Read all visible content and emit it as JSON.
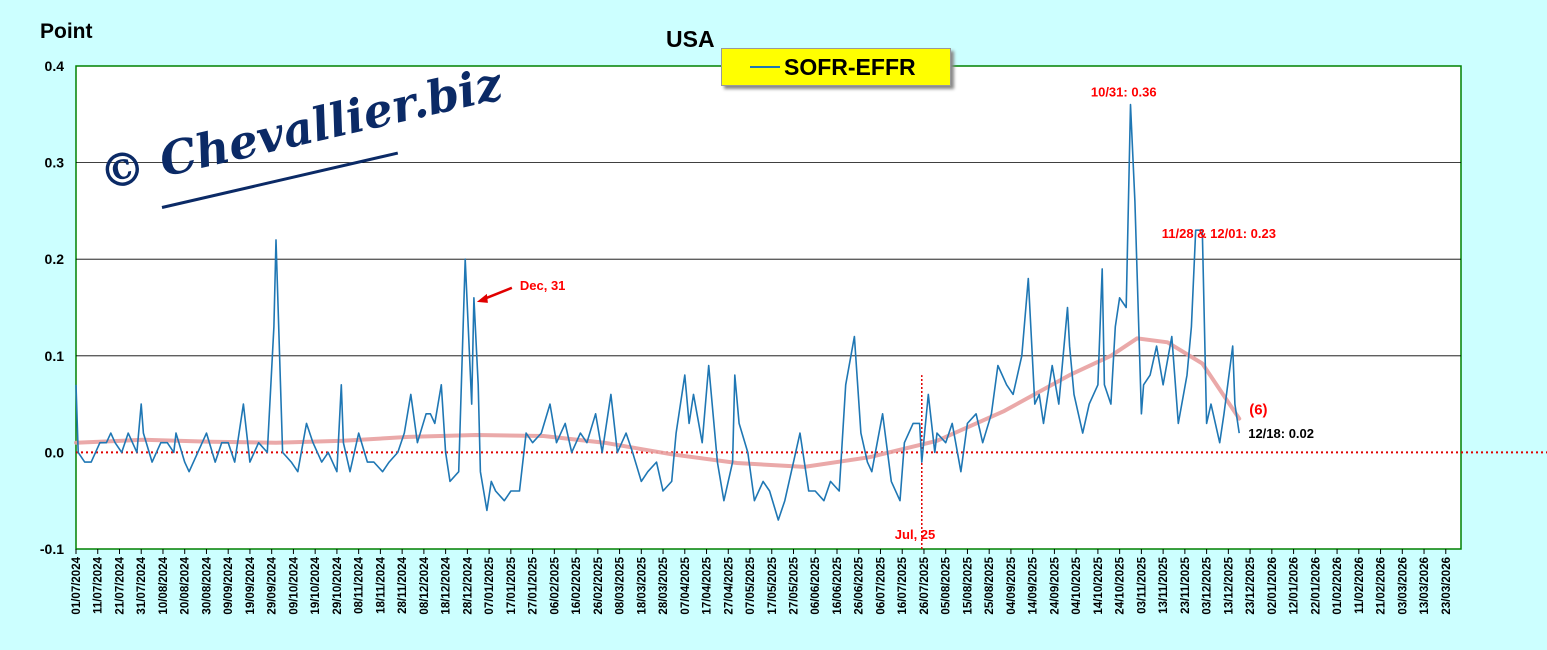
{
  "chart_data": {
    "type": "line",
    "title": "USA",
    "ylabel": "Point",
    "ylim": [
      -0.1,
      0.4
    ],
    "yticks": [
      "0.4",
      "0.3",
      "0.2",
      "0.1",
      "0.0",
      "-0.1"
    ],
    "xlim": [
      "2024-07-01",
      "2026-03-30"
    ],
    "xticks": [
      "01/07/2024",
      "11/07/2024",
      "21/07/2024",
      "31/07/2024",
      "10/08/2024",
      "20/08/2024",
      "30/08/2024",
      "09/09/2024",
      "19/09/2024",
      "29/09/2024",
      "09/10/2024",
      "19/10/2024",
      "29/10/2024",
      "08/11/2024",
      "18/11/2024",
      "28/11/2024",
      "08/12/2024",
      "18/12/2024",
      "28/12/2024",
      "07/01/2025",
      "17/01/2025",
      "27/01/2025",
      "06/02/2025",
      "16/02/2025",
      "26/02/2025",
      "08/03/2025",
      "18/03/2025",
      "28/03/2025",
      "07/04/2025",
      "17/04/2025",
      "27/04/2025",
      "07/05/2025",
      "17/05/2025",
      "27/05/2025",
      "06/06/2025",
      "16/06/2025",
      "26/06/2025",
      "06/07/2025",
      "16/07/2025",
      "26/07/2025",
      "05/08/2025",
      "15/08/2025",
      "25/08/2025",
      "04/09/2025",
      "14/09/2025",
      "24/09/2025",
      "04/10/2025",
      "14/10/2025",
      "24/10/2025",
      "03/11/2025",
      "13/11/2025",
      "23/11/2025",
      "03/12/2025",
      "13/12/2025",
      "23/12/2025",
      "02/01/2026",
      "12/01/2026",
      "22/01/2026",
      "01/02/2026",
      "11/02/2026",
      "21/02/2026",
      "03/03/2026",
      "13/03/2026",
      "23/03/2026"
    ],
    "grid": "horizontal",
    "legend": "top-center",
    "series": [
      {
        "name": "SOFR-EFFR",
        "color": "#1f77b4",
        "x": [
          "2024-07-01",
          "2024-07-02",
          "2024-07-05",
          "2024-07-08",
          "2024-07-12",
          "2024-07-15",
          "2024-07-17",
          "2024-07-19",
          "2024-07-22",
          "2024-07-25",
          "2024-07-29",
          "2024-07-31",
          "2024-08-01",
          "2024-08-05",
          "2024-08-09",
          "2024-08-12",
          "2024-08-15",
          "2024-08-16",
          "2024-08-20",
          "2024-08-22",
          "2024-08-26",
          "2024-08-30",
          "2024-09-03",
          "2024-09-06",
          "2024-09-09",
          "2024-09-12",
          "2024-09-16",
          "2024-09-19",
          "2024-09-23",
          "2024-09-27",
          "2024-09-30",
          "2024-10-01",
          "2024-10-04",
          "2024-10-08",
          "2024-10-11",
          "2024-10-15",
          "2024-10-18",
          "2024-10-22",
          "2024-10-25",
          "2024-10-29",
          "2024-10-31",
          "2024-11-01",
          "2024-11-04",
          "2024-11-08",
          "2024-11-12",
          "2024-11-15",
          "2024-11-19",
          "2024-11-22",
          "2024-11-26",
          "2024-11-29",
          "2024-12-02",
          "2024-12-05",
          "2024-12-09",
          "2024-12-11",
          "2024-12-13",
          "2024-12-16",
          "2024-12-18",
          "2024-12-20",
          "2024-12-24",
          "2024-12-27",
          "2024-12-30",
          "2024-12-31",
          "2025-01-02",
          "2025-01-03",
          "2025-01-06",
          "2025-01-08",
          "2025-01-10",
          "2025-01-14",
          "2025-01-17",
          "2025-01-21",
          "2025-01-24",
          "2025-01-27",
          "2025-01-31",
          "2025-02-04",
          "2025-02-07",
          "2025-02-11",
          "2025-02-14",
          "2025-02-18",
          "2025-02-21",
          "2025-02-25",
          "2025-02-28",
          "2025-03-04",
          "2025-03-07",
          "2025-03-11",
          "2025-03-14",
          "2025-03-18",
          "2025-03-21",
          "2025-03-25",
          "2025-03-28",
          "2025-04-01",
          "2025-04-03",
          "2025-04-07",
          "2025-04-09",
          "2025-04-11",
          "2025-04-15",
          "2025-04-18",
          "2025-04-22",
          "2025-04-25",
          "2025-04-29",
          "2025-04-30",
          "2025-05-02",
          "2025-05-06",
          "2025-05-09",
          "2025-05-13",
          "2025-05-16",
          "2025-05-20",
          "2025-05-23",
          "2025-05-27",
          "2025-05-30",
          "2025-06-03",
          "2025-06-06",
          "2025-06-10",
          "2025-06-13",
          "2025-06-17",
          "2025-06-20",
          "2025-06-24",
          "2025-06-27",
          "2025-06-30",
          "2025-07-02",
          "2025-07-07",
          "2025-07-11",
          "2025-07-15",
          "2025-07-17",
          "2025-07-21",
          "2025-07-24",
          "2025-07-25",
          "2025-07-28",
          "2025-07-31",
          "2025-08-01",
          "2025-08-05",
          "2025-08-08",
          "2025-08-12",
          "2025-08-15",
          "2025-08-19",
          "2025-08-22",
          "2025-08-26",
          "2025-08-29",
          "2025-09-02",
          "2025-09-05",
          "2025-09-09",
          "2025-09-12",
          "2025-09-15",
          "2025-09-17",
          "2025-09-19",
          "2025-09-23",
          "2025-09-26",
          "2025-09-30",
          "2025-10-01",
          "2025-10-03",
          "2025-10-07",
          "2025-10-10",
          "2025-10-14",
          "2025-10-16",
          "2025-10-17",
          "2025-10-20",
          "2025-10-22",
          "2025-10-24",
          "2025-10-27",
          "2025-10-29",
          "2025-10-31",
          "2025-11-03",
          "2025-11-04",
          "2025-11-07",
          "2025-11-10",
          "2025-11-13",
          "2025-11-17",
          "2025-11-20",
          "2025-11-24",
          "2025-11-26",
          "2025-11-28",
          "2025-12-01",
          "2025-12-03",
          "2025-12-05",
          "2025-12-09",
          "2025-12-11",
          "2025-12-15",
          "2025-12-16",
          "2025-12-18"
        ],
        "values": [
          0.07,
          0.0,
          -0.01,
          -0.01,
          0.01,
          0.01,
          0.02,
          0.01,
          0.0,
          0.02,
          0.0,
          0.05,
          0.02,
          -0.01,
          0.01,
          0.01,
          0.0,
          0.02,
          -0.01,
          -0.02,
          0.0,
          0.02,
          -0.01,
          0.01,
          0.01,
          -0.01,
          0.05,
          -0.01,
          0.01,
          0.0,
          0.13,
          0.22,
          0.0,
          -0.01,
          -0.02,
          0.03,
          0.01,
          -0.01,
          0.0,
          -0.02,
          0.07,
          0.01,
          -0.02,
          0.02,
          -0.01,
          -0.01,
          -0.02,
          -0.01,
          0.0,
          0.02,
          0.06,
          0.01,
          0.04,
          0.04,
          0.03,
          0.07,
          0.0,
          -0.03,
          -0.02,
          0.2,
          0.05,
          0.16,
          0.07,
          -0.02,
          -0.06,
          -0.03,
          -0.04,
          -0.05,
          -0.04,
          -0.04,
          0.02,
          0.01,
          0.02,
          0.05,
          0.01,
          0.03,
          0.0,
          0.02,
          0.01,
          0.04,
          0.0,
          0.06,
          0.0,
          0.02,
          0.0,
          -0.03,
          -0.02,
          -0.01,
          -0.04,
          -0.03,
          0.02,
          0.08,
          0.03,
          0.06,
          0.01,
          0.09,
          -0.01,
          -0.05,
          -0.01,
          0.08,
          0.03,
          0.0,
          -0.05,
          -0.03,
          -0.04,
          -0.07,
          -0.05,
          -0.01,
          0.02,
          -0.04,
          -0.04,
          -0.05,
          -0.03,
          -0.04,
          0.07,
          0.12,
          0.02,
          -0.01,
          -0.02,
          0.04,
          -0.03,
          -0.05,
          0.01,
          0.03,
          0.03,
          -0.01,
          0.06,
          0.0,
          0.02,
          0.01,
          0.03,
          -0.02,
          0.03,
          0.04,
          0.01,
          0.04,
          0.09,
          0.07,
          0.06,
          0.1,
          0.18,
          0.05,
          0.06,
          0.03,
          0.09,
          0.05,
          0.15,
          0.11,
          0.06,
          0.02,
          0.05,
          0.07,
          0.19,
          0.07,
          0.05,
          0.13,
          0.16,
          0.15,
          0.36,
          0.26,
          0.04,
          0.07,
          0.08,
          0.11,
          0.07,
          0.12,
          0.03,
          0.08,
          0.13,
          0.23,
          0.23,
          0.03,
          0.05,
          0.01,
          0.04,
          0.11,
          0.05,
          0.02
        ]
      },
      {
        "name": "",
        "color": "#e8a0a0",
        "x": [
          "2024-07-01",
          "2024-08-01",
          "2024-09-01",
          "2024-10-01",
          "2024-11-01",
          "2024-12-01",
          "2025-01-01",
          "2025-02-01",
          "2025-03-01",
          "2025-04-01",
          "2025-05-01",
          "2025-06-01",
          "2025-07-01",
          "2025-08-01",
          "2025-09-01",
          "2025-10-01",
          "2025-10-20",
          "2025-11-01",
          "2025-11-15",
          "2025-12-01",
          "2025-12-18"
        ],
        "values": [
          0.01,
          0.013,
          0.011,
          0.01,
          0.012,
          0.016,
          0.018,
          0.017,
          0.01,
          -0.002,
          -0.011,
          -0.015,
          -0.005,
          0.012,
          0.043,
          0.08,
          0.1,
          0.118,
          0.114,
          0.092,
          0.035
        ]
      }
    ],
    "annotations": [
      {
        "text": "Dec, 31",
        "x": "2024-12-31",
        "y": 0.16,
        "color": "#ff0000"
      },
      {
        "text": "10/31: 0.36",
        "x": "2025-10-31",
        "y": 0.36,
        "color": "#ff0000"
      },
      {
        "text": "11/28 & 12/01: 0.23",
        "x": "2025-11-28",
        "y": 0.23,
        "color": "#ff0000"
      },
      {
        "text": "Jul, 25",
        "x": "2025-07-25",
        "y": -0.1,
        "color": "#ff0000"
      },
      {
        "text": "(6)",
        "x": "2025-12-18",
        "y": 0.035,
        "color": "#ff0000"
      },
      {
        "text": "12/18: 0.02",
        "x": "2025-12-18",
        "y": 0.02,
        "color": "#000000"
      }
    ]
  },
  "header": {
    "ylabel": "Point",
    "title": "USA",
    "legend_label": "SOFR-EFFR"
  },
  "watermark": {
    "copyright": "©",
    "text": "Chevallier.biz"
  }
}
